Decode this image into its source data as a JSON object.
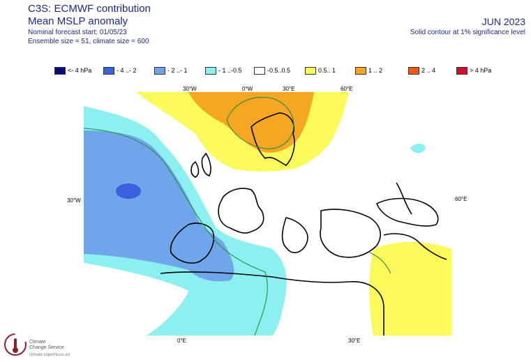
{
  "header": {
    "title": "C3S: ECMWF contribution",
    "subtitle": "Mean MSLP anomaly",
    "forecast_start": "Nominal forecast start: 01/05/23",
    "ensemble": "Ensemble size = 51, climate size = 600",
    "month": "JUN 2023",
    "significance": "Solid contour at 1% significance level"
  },
  "legend": [
    {
      "label": "<- 4 hPa",
      "color": "#0a0a80"
    },
    {
      "label": "- 4 ..- 2",
      "color": "#3c5fe0"
    },
    {
      "label": "- 2 ..- 1",
      "color": "#6fa6ea"
    },
    {
      "label": "- 1 ..-0.5",
      "color": "#8df0f0"
    },
    {
      "label": "-0.5..0.5",
      "color": "#ffffff"
    },
    {
      "label": "0.5.. 1",
      "color": "#fafa5a"
    },
    {
      "label": "1 .. 2",
      "color": "#f5a623"
    },
    {
      "label": "2 .. 4",
      "color": "#ef5a14"
    },
    {
      "label": "> 4 hPa",
      "color": "#d0102c"
    }
  ],
  "grid_labels": {
    "top_30w": "30°W",
    "top_0w": "0°W",
    "top_30e": "30°E",
    "top_60e": "60°E",
    "left_30w": "30°W",
    "right_60e": "60°E",
    "bottom_0e": "0°E",
    "bottom_30e": "30°E"
  },
  "logo": {
    "name_line1": "Climate",
    "name_line2": "Change Service",
    "url": "climate.copernicus.eu"
  }
}
